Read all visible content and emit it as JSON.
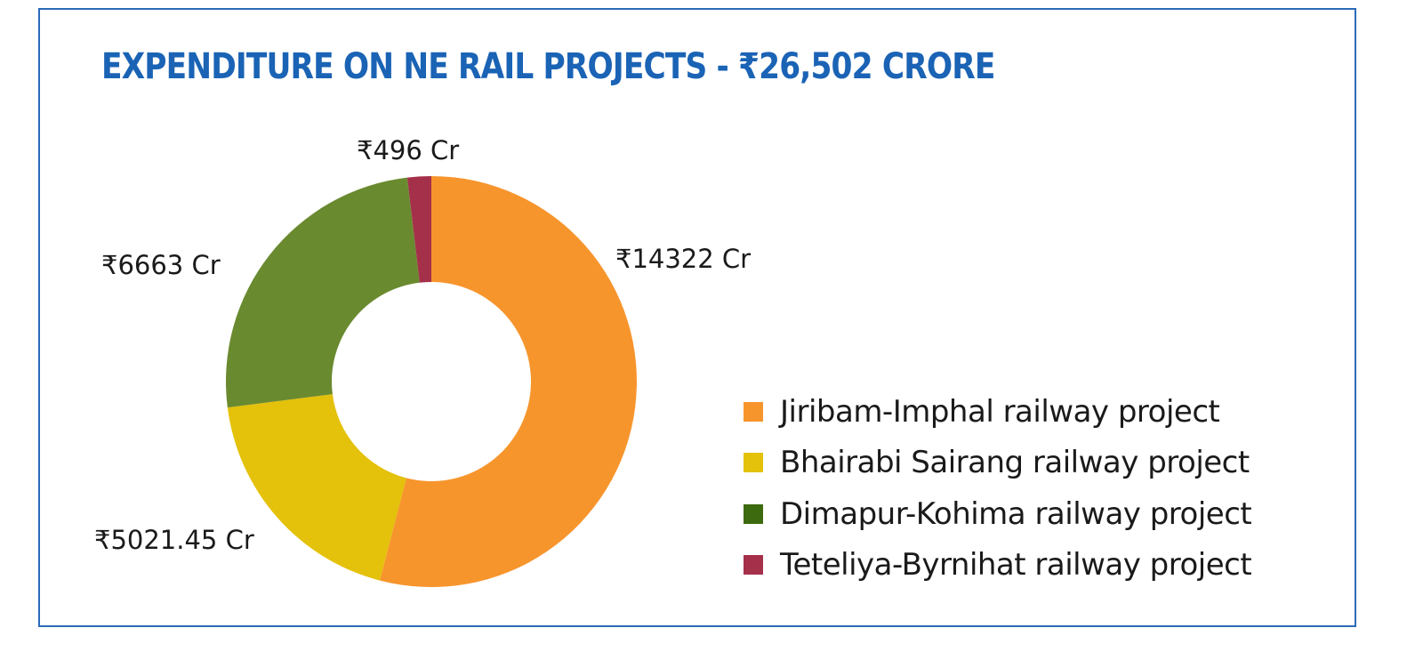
{
  "title_text": "EXPENDITURE ON NE RAIL PROJECTS -  ₹26,502 CRORE",
  "colors": {
    "frame": "#2a6bb8",
    "title": "#1a63b5"
  },
  "chart_data": {
    "type": "pie",
    "subtype": "donut",
    "title": "EXPENDITURE ON NE RAIL PROJECTS -  ₹26,502 CRORE",
    "legend_position": "right",
    "slices": [
      {
        "name": "Jiribam-Imphal railway project",
        "value": 14322,
        "label": "₹14322 Cr",
        "color": "#f7952d",
        "legend_color": "#f7952d"
      },
      {
        "name": "Bhairabi Sairang railway project",
        "value": 5021.45,
        "label": "₹5021.45 Cr",
        "color": "#e4c10b",
        "legend_color": "#e4c10b"
      },
      {
        "name": "Dimapur-Kohima railway project",
        "value": 6663,
        "label": "₹6663 Cr",
        "color": "#6a8a2f",
        "legend_color": "#3d6a0f"
      },
      {
        "name": "Teteliya-Byrnihat railway project",
        "value": 496,
        "label": "₹496 Cr",
        "color": "#a5304a",
        "legend_color": "#a5304a"
      }
    ]
  }
}
